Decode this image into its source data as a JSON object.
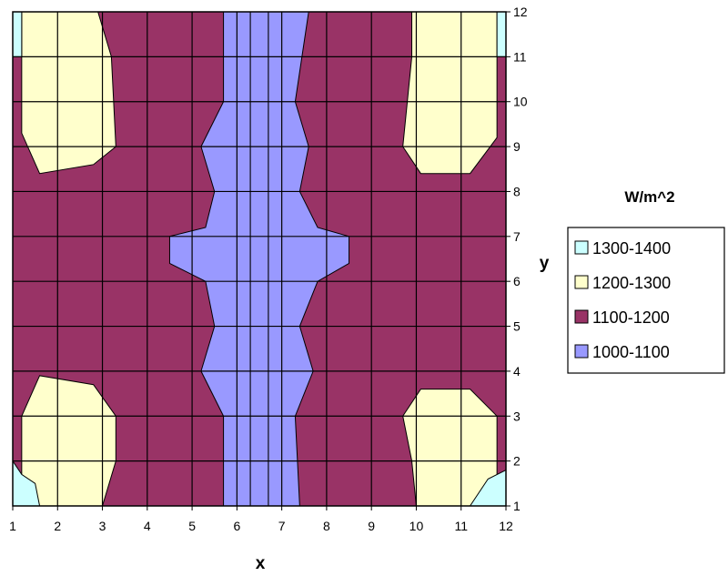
{
  "chart_data": {
    "type": "heatmap",
    "subtype": "contour",
    "title": "",
    "xlabel": "x",
    "ylabel": "y",
    "xlim": [
      1,
      12
    ],
    "ylim": [
      1,
      12
    ],
    "x_ticks": [
      "1",
      "2",
      "3",
      "4",
      "5",
      "6",
      "7",
      "8",
      "9",
      "10",
      "11",
      "12"
    ],
    "y_ticks": [
      "1",
      "2",
      "3",
      "4",
      "5",
      "6",
      "7",
      "8",
      "9",
      "10",
      "11",
      "12"
    ],
    "grid": true,
    "legend_title": "W/m^2",
    "legend_position": "right",
    "bands": [
      {
        "name": "1300-1400",
        "color": "#ccffff"
      },
      {
        "name": "1200-1300",
        "color": "#ffffcc"
      },
      {
        "name": "1100-1200",
        "color": "#993366"
      },
      {
        "name": "1000-1100",
        "color": "#9999ff"
      }
    ],
    "regions": [
      {
        "band": 2,
        "poly": [
          [
            1,
            1
          ],
          [
            12,
            1
          ],
          [
            12,
            12
          ],
          [
            1,
            12
          ]
        ]
      },
      {
        "band": 3,
        "poly": [
          [
            4.9,
            12
          ],
          [
            5.7,
            12
          ],
          [
            5.7,
            10
          ],
          [
            5.2,
            9
          ],
          [
            5.5,
            8
          ],
          [
            5.3,
            7.2
          ],
          [
            4.5,
            7
          ],
          [
            4.5,
            6.4
          ],
          [
            5.3,
            6
          ],
          [
            5.5,
            5
          ],
          [
            5.2,
            4
          ],
          [
            5.7,
            3
          ],
          [
            5.7,
            1
          ],
          [
            6.3,
            1
          ],
          [
            6.3,
            12
          ]
        ]
      },
      {
        "band": 3,
        "poly": [
          [
            6.7,
            12
          ],
          [
            7.6,
            12
          ],
          [
            7.3,
            10
          ],
          [
            7.6,
            9
          ],
          [
            7.4,
            8
          ],
          [
            7.8,
            7.2
          ],
          [
            8.5,
            7
          ],
          [
            8.5,
            6.4
          ],
          [
            7.8,
            6
          ],
          [
            7.4,
            5
          ],
          [
            7.7,
            4
          ],
          [
            7.3,
            3
          ],
          [
            7.4,
            1
          ],
          [
            6.7,
            1
          ]
        ]
      },
      {
        "band": 3,
        "poly": [
          [
            6.3,
            12
          ],
          [
            6.7,
            12
          ],
          [
            6.7,
            1
          ],
          [
            6.3,
            1
          ]
        ]
      },
      {
        "band": 1,
        "poly": [
          [
            1.2,
            12
          ],
          [
            2.9,
            12
          ],
          [
            3.2,
            11
          ],
          [
            3.3,
            9
          ],
          [
            2.8,
            8.6
          ],
          [
            1.6,
            8.4
          ],
          [
            1.2,
            9.3
          ],
          [
            1.2,
            11
          ]
        ]
      },
      {
        "band": 1,
        "poly": [
          [
            9.9,
            12
          ],
          [
            11.8,
            12
          ],
          [
            11.8,
            11
          ],
          [
            11.8,
            9.2
          ],
          [
            11.2,
            8.4
          ],
          [
            10.1,
            8.4
          ],
          [
            9.7,
            9
          ],
          [
            9.9,
            11
          ]
        ]
      },
      {
        "band": 1,
        "poly": [
          [
            1.2,
            1
          ],
          [
            3,
            1
          ],
          [
            3.3,
            2
          ],
          [
            3.3,
            3
          ],
          [
            2.8,
            3.7
          ],
          [
            1.6,
            3.9
          ],
          [
            1.2,
            3
          ]
        ]
      },
      {
        "band": 1,
        "poly": [
          [
            10,
            1
          ],
          [
            11.8,
            1
          ],
          [
            11.8,
            3
          ],
          [
            11.2,
            3.6
          ],
          [
            10.1,
            3.6
          ],
          [
            9.7,
            3
          ],
          [
            9.9,
            2
          ]
        ]
      },
      {
        "band": 0,
        "poly": [
          [
            1,
            12
          ],
          [
            1.2,
            12
          ],
          [
            1.2,
            11
          ],
          [
            1,
            11
          ]
        ]
      },
      {
        "band": 0,
        "poly": [
          [
            11.8,
            12
          ],
          [
            12,
            12
          ],
          [
            12,
            11
          ],
          [
            11.8,
            11
          ]
        ]
      },
      {
        "band": 0,
        "poly": [
          [
            1,
            1
          ],
          [
            1.6,
            1
          ],
          [
            1.5,
            1.5
          ],
          [
            1.2,
            1.7
          ],
          [
            1,
            2
          ]
        ]
      },
      {
        "band": 0,
        "poly": [
          [
            11.2,
            1
          ],
          [
            12,
            1
          ],
          [
            12,
            1.8
          ],
          [
            11.6,
            1.6
          ]
        ]
      }
    ]
  }
}
